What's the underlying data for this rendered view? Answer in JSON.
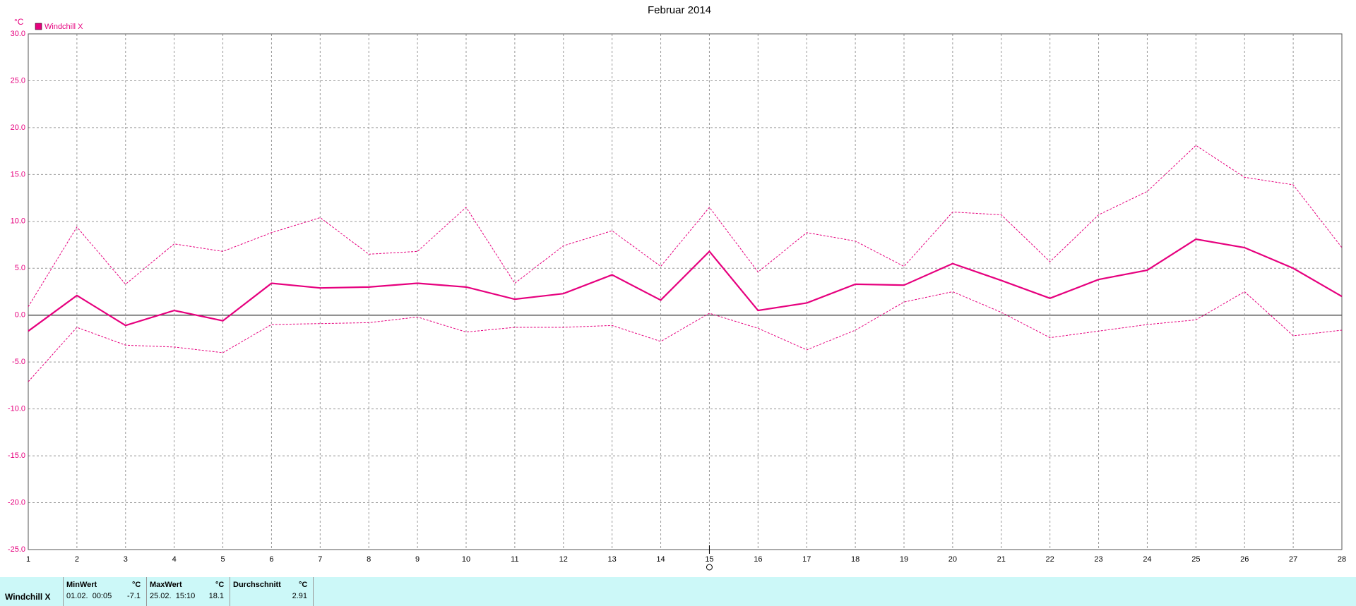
{
  "chart_data": {
    "type": "line",
    "title": "Februar 2014",
    "y_unit": "°C",
    "x": [
      1,
      2,
      3,
      4,
      5,
      6,
      7,
      8,
      9,
      10,
      11,
      12,
      13,
      14,
      15,
      16,
      17,
      18,
      19,
      20,
      21,
      22,
      23,
      24,
      25,
      26,
      27,
      28
    ],
    "xlim": [
      1,
      28
    ],
    "xticks": [
      1,
      2,
      3,
      4,
      5,
      6,
      7,
      8,
      9,
      10,
      11,
      12,
      13,
      14,
      15,
      16,
      17,
      18,
      19,
      20,
      21,
      22,
      23,
      24,
      25,
      26,
      27,
      28
    ],
    "ylim": [
      -25,
      30
    ],
    "yticks": [
      {
        "value": -25,
        "label": "-25.0"
      },
      {
        "value": -20,
        "label": "-20.0"
      },
      {
        "value": -15,
        "label": "-15.0"
      },
      {
        "value": -10,
        "label": "-10.0"
      },
      {
        "value": -5,
        "label": "-5.0"
      },
      {
        "value": 0,
        "label": "0.0"
      },
      {
        "value": 5,
        "label": "5.0"
      },
      {
        "value": 10,
        "label": "10.0"
      },
      {
        "value": 15,
        "label": "15.0"
      },
      {
        "value": 20,
        "label": "20.0"
      },
      {
        "value": 25,
        "label": "25.0"
      },
      {
        "value": 30,
        "label": "30.0"
      }
    ],
    "grid": true,
    "legend": "top-left",
    "series": [
      {
        "name": "Windchill X",
        "color": "#e6007e",
        "style": "solid",
        "values": [
          -1.7,
          2.1,
          -1.1,
          0.5,
          -0.6,
          3.4,
          2.9,
          3.0,
          3.4,
          3.0,
          1.7,
          2.3,
          4.3,
          1.6,
          6.8,
          0.5,
          1.3,
          3.3,
          3.2,
          5.5,
          3.7,
          1.8,
          3.8,
          4.8,
          8.1,
          7.2,
          5.0,
          2.0
        ]
      },
      {
        "color": "#e6007e",
        "style": "dashed",
        "values": [
          0.9,
          9.4,
          3.3,
          7.6,
          6.8,
          8.8,
          10.4,
          6.5,
          6.8,
          11.5,
          3.4,
          7.4,
          9.0,
          5.2,
          11.5,
          4.6,
          8.8,
          7.9,
          5.2,
          11.0,
          10.7,
          5.7,
          10.7,
          13.2,
          18.1,
          14.7,
          13.9,
          7.2
        ]
      },
      {
        "color": "#e6007e",
        "style": "dashed",
        "values": [
          -7.1,
          -1.3,
          -3.2,
          -3.4,
          -4.0,
          -1.0,
          -0.9,
          -0.8,
          -0.2,
          -1.8,
          -1.3,
          -1.3,
          -1.1,
          -2.8,
          0.2,
          -1.4,
          -3.7,
          -1.6,
          1.4,
          2.5,
          0.3,
          -2.4,
          -1.7,
          -1.0,
          -0.5,
          2.5,
          -2.2,
          -1.6
        ]
      }
    ]
  },
  "stats_table": {
    "row_label": "Windchill X",
    "columns": [
      {
        "header": "MinWert",
        "unit": "°C",
        "date": "01.02.  00:05",
        "value": -7.1
      },
      {
        "header": "MaxWert",
        "unit": "°C",
        "date": "25.02.  15:10",
        "value": 18.1
      },
      {
        "header": "Durchschnitt",
        "unit": "°C",
        "value": 2.91
      }
    ]
  }
}
